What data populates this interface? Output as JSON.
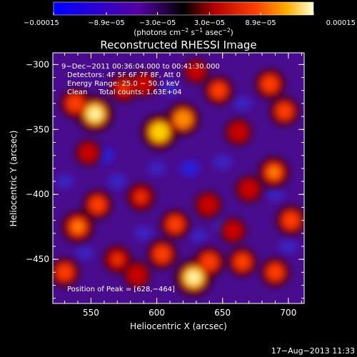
{
  "chart_data": {
    "type": "heatmap",
    "title": "Reconstructed RHESSI Image",
    "xlabel": "Heliocentric X (arcsec)",
    "ylabel": "Heliocentric Y (arcsec)",
    "xlim": [
      521,
      712
    ],
    "ylim": [
      -484,
      -291
    ],
    "x_ticks": [
      550,
      600,
      650,
      700
    ],
    "x_tick_labels": [
      "550",
      "600",
      "650",
      "700"
    ],
    "y_ticks": [
      -300,
      -350,
      -400,
      -450
    ],
    "y_tick_labels": [
      "−300",
      "−350",
      "−400",
      "−450"
    ],
    "colorbar": {
      "min": -0.00015,
      "max": 0.00015,
      "tick_values": [
        -0.00015,
        -8.9e-05,
        -3e-05,
        3e-05,
        8.9e-05,
        0.00015
      ],
      "tick_labels": [
        "−0.00015",
        "−8.9e−05",
        "−3.0e−05",
        "3.0e−05",
        "8.9e−05",
        "0.00015"
      ],
      "units_main": "(photons cm",
      "units_sup1": "−2",
      "units_mid": " s",
      "units_sup2": "−1",
      "units_end": " asec",
      "units_sup3": "−2",
      "units_close": ")"
    },
    "annotations": {
      "time_range": "9−Dec−2011 00:36:04.000 to 00:41:30.000",
      "detectors": "Detectors: 4F 5F 6F 7F 8F, Att 0",
      "energy": "Energy Range: 25.0 − 50.0 keV",
      "clean": "Clean     Total counts: 1.63E+04",
      "peak": "Position of Peak = [628,−464]"
    },
    "peak_position": [
      628,
      -464
    ],
    "sources": [
      {
        "x": 553,
        "y": -338,
        "level": 0.95
      },
      {
        "x": 538,
        "y": -330,
        "level": 0.6
      },
      {
        "x": 602,
        "y": -352,
        "level": 0.9
      },
      {
        "x": 620,
        "y": -342,
        "level": 0.75
      },
      {
        "x": 647,
        "y": -320,
        "level": 0.55
      },
      {
        "x": 686,
        "y": -315,
        "level": 0.6
      },
      {
        "x": 697,
        "y": -336,
        "level": 0.55
      },
      {
        "x": 689,
        "y": -383,
        "level": 0.65
      },
      {
        "x": 662,
        "y": -352,
        "level": 0.45
      },
      {
        "x": 702,
        "y": -420,
        "level": 0.6
      },
      {
        "x": 690,
        "y": -460,
        "level": 0.55
      },
      {
        "x": 665,
        "y": -452,
        "level": 0.55
      },
      {
        "x": 640,
        "y": -452,
        "level": 0.6
      },
      {
        "x": 628,
        "y": -464,
        "level": 1.0
      },
      {
        "x": 604,
        "y": -446,
        "level": 0.6
      },
      {
        "x": 585,
        "y": -462,
        "level": 0.45
      },
      {
        "x": 570,
        "y": -450,
        "level": 0.5
      },
      {
        "x": 540,
        "y": -425,
        "level": 0.7
      },
      {
        "x": 555,
        "y": -408,
        "level": 0.55
      },
      {
        "x": 588,
        "y": -402,
        "level": 0.5
      },
      {
        "x": 614,
        "y": -423,
        "level": 0.55
      },
      {
        "x": 639,
        "y": -408,
        "level": 0.45
      },
      {
        "x": 670,
        "y": -396,
        "level": 0.45
      },
      {
        "x": 575,
        "y": -318,
        "level": 0.5
      },
      {
        "x": 530,
        "y": -460,
        "level": 0.55
      },
      {
        "x": 548,
        "y": -368,
        "level": 0.4
      },
      {
        "x": 590,
        "y": -315,
        "level": 0.4
      },
      {
        "x": 630,
        "y": -305,
        "level": 0.35
      },
      {
        "x": 658,
        "y": -428,
        "level": 0.4
      }
    ],
    "negatives": [
      {
        "x": 560,
        "y": -370,
        "level": 0.7
      },
      {
        "x": 570,
        "y": -390,
        "level": 0.6
      },
      {
        "x": 625,
        "y": -380,
        "level": 0.7
      },
      {
        "x": 650,
        "y": -375,
        "level": 0.6
      },
      {
        "x": 665,
        "y": -330,
        "level": 0.55
      },
      {
        "x": 610,
        "y": -318,
        "level": 0.55
      },
      {
        "x": 650,
        "y": -425,
        "level": 0.5
      },
      {
        "x": 590,
        "y": -430,
        "level": 0.55
      },
      {
        "x": 545,
        "y": -445,
        "level": 0.5
      },
      {
        "x": 700,
        "y": -440,
        "level": 0.6
      },
      {
        "x": 690,
        "y": -400,
        "level": 0.5
      },
      {
        "x": 530,
        "y": -390,
        "level": 0.55
      },
      {
        "x": 600,
        "y": -380,
        "level": 0.5
      },
      {
        "x": 632,
        "y": -432,
        "level": 0.45
      }
    ]
  },
  "footer": {
    "timestamp": "17−Aug−2013 11:33"
  }
}
